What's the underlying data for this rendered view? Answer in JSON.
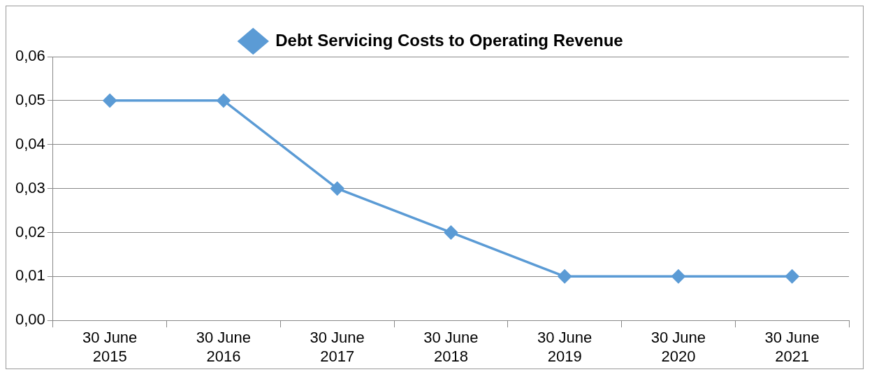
{
  "chart_data": {
    "type": "line",
    "categories": [
      "30 June 2015",
      "30 June 2016",
      "30 June 2017",
      "30 June 2018",
      "30 June 2019",
      "30 June 2020",
      "30 June 2021"
    ],
    "series": [
      {
        "name": "Debt Servicing Costs to Operating Revenue",
        "color": "#5b9bd5",
        "values": [
          0.05,
          0.05,
          0.03,
          0.02,
          0.01,
          0.01,
          0.01
        ]
      }
    ],
    "ylim": [
      0,
      0.06
    ],
    "yticks": [
      {
        "value": 0,
        "label": "0,00"
      },
      {
        "value": 0.01,
        "label": "0,01"
      },
      {
        "value": 0.02,
        "label": "0,02"
      },
      {
        "value": 0.03,
        "label": "0,03"
      },
      {
        "value": 0.04,
        "label": "0,04"
      },
      {
        "value": 0.05,
        "label": "0,05"
      },
      {
        "value": 0.06,
        "label": "0,06"
      }
    ],
    "grid": "y",
    "legend": "top",
    "marker": "diamond",
    "line_style": "solid"
  }
}
